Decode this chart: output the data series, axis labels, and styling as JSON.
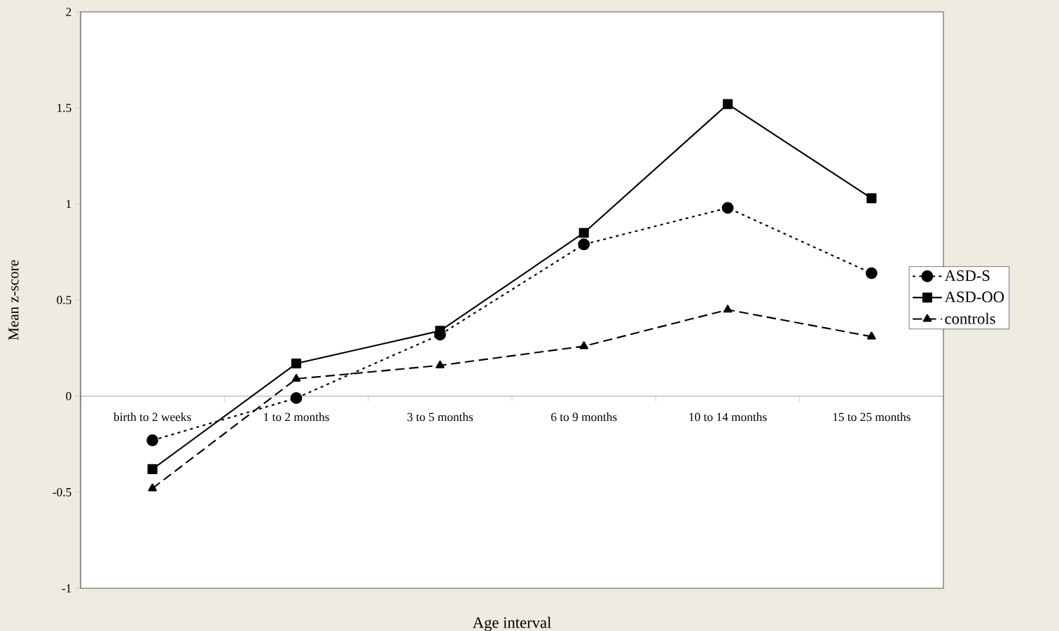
{
  "chart_data": {
    "type": "line",
    "xlabel": "Age interval",
    "ylabel": "Mean z-score",
    "categories": [
      "birth to 2 weeks",
      "1 to 2 months",
      "3 to 5 months",
      "6 to 9 months",
      "10 to 14 months",
      "15 to 25 months"
    ],
    "series": [
      {
        "name": "ASD-S",
        "color": "#000000",
        "line_style": "dotted",
        "marker": "circle",
        "values": [
          -0.23,
          -0.01,
          0.32,
          0.79,
          0.98,
          0.64
        ]
      },
      {
        "name": "ASD-OO",
        "color": "#000000",
        "line_style": "solid",
        "marker": "square",
        "values": [
          -0.38,
          0.17,
          0.34,
          0.85,
          1.52,
          1.03
        ]
      },
      {
        "name": "controls",
        "color": "#000000",
        "line_style": "dashed",
        "marker": "triangle",
        "values": [
          -0.48,
          0.09,
          0.16,
          0.26,
          0.45,
          0.31
        ]
      }
    ],
    "ylim": [
      -1,
      2
    ],
    "yticks": [
      -1,
      -0.5,
      0,
      0.5,
      1,
      1.5,
      2
    ],
    "grid": false,
    "legend": "right"
  }
}
